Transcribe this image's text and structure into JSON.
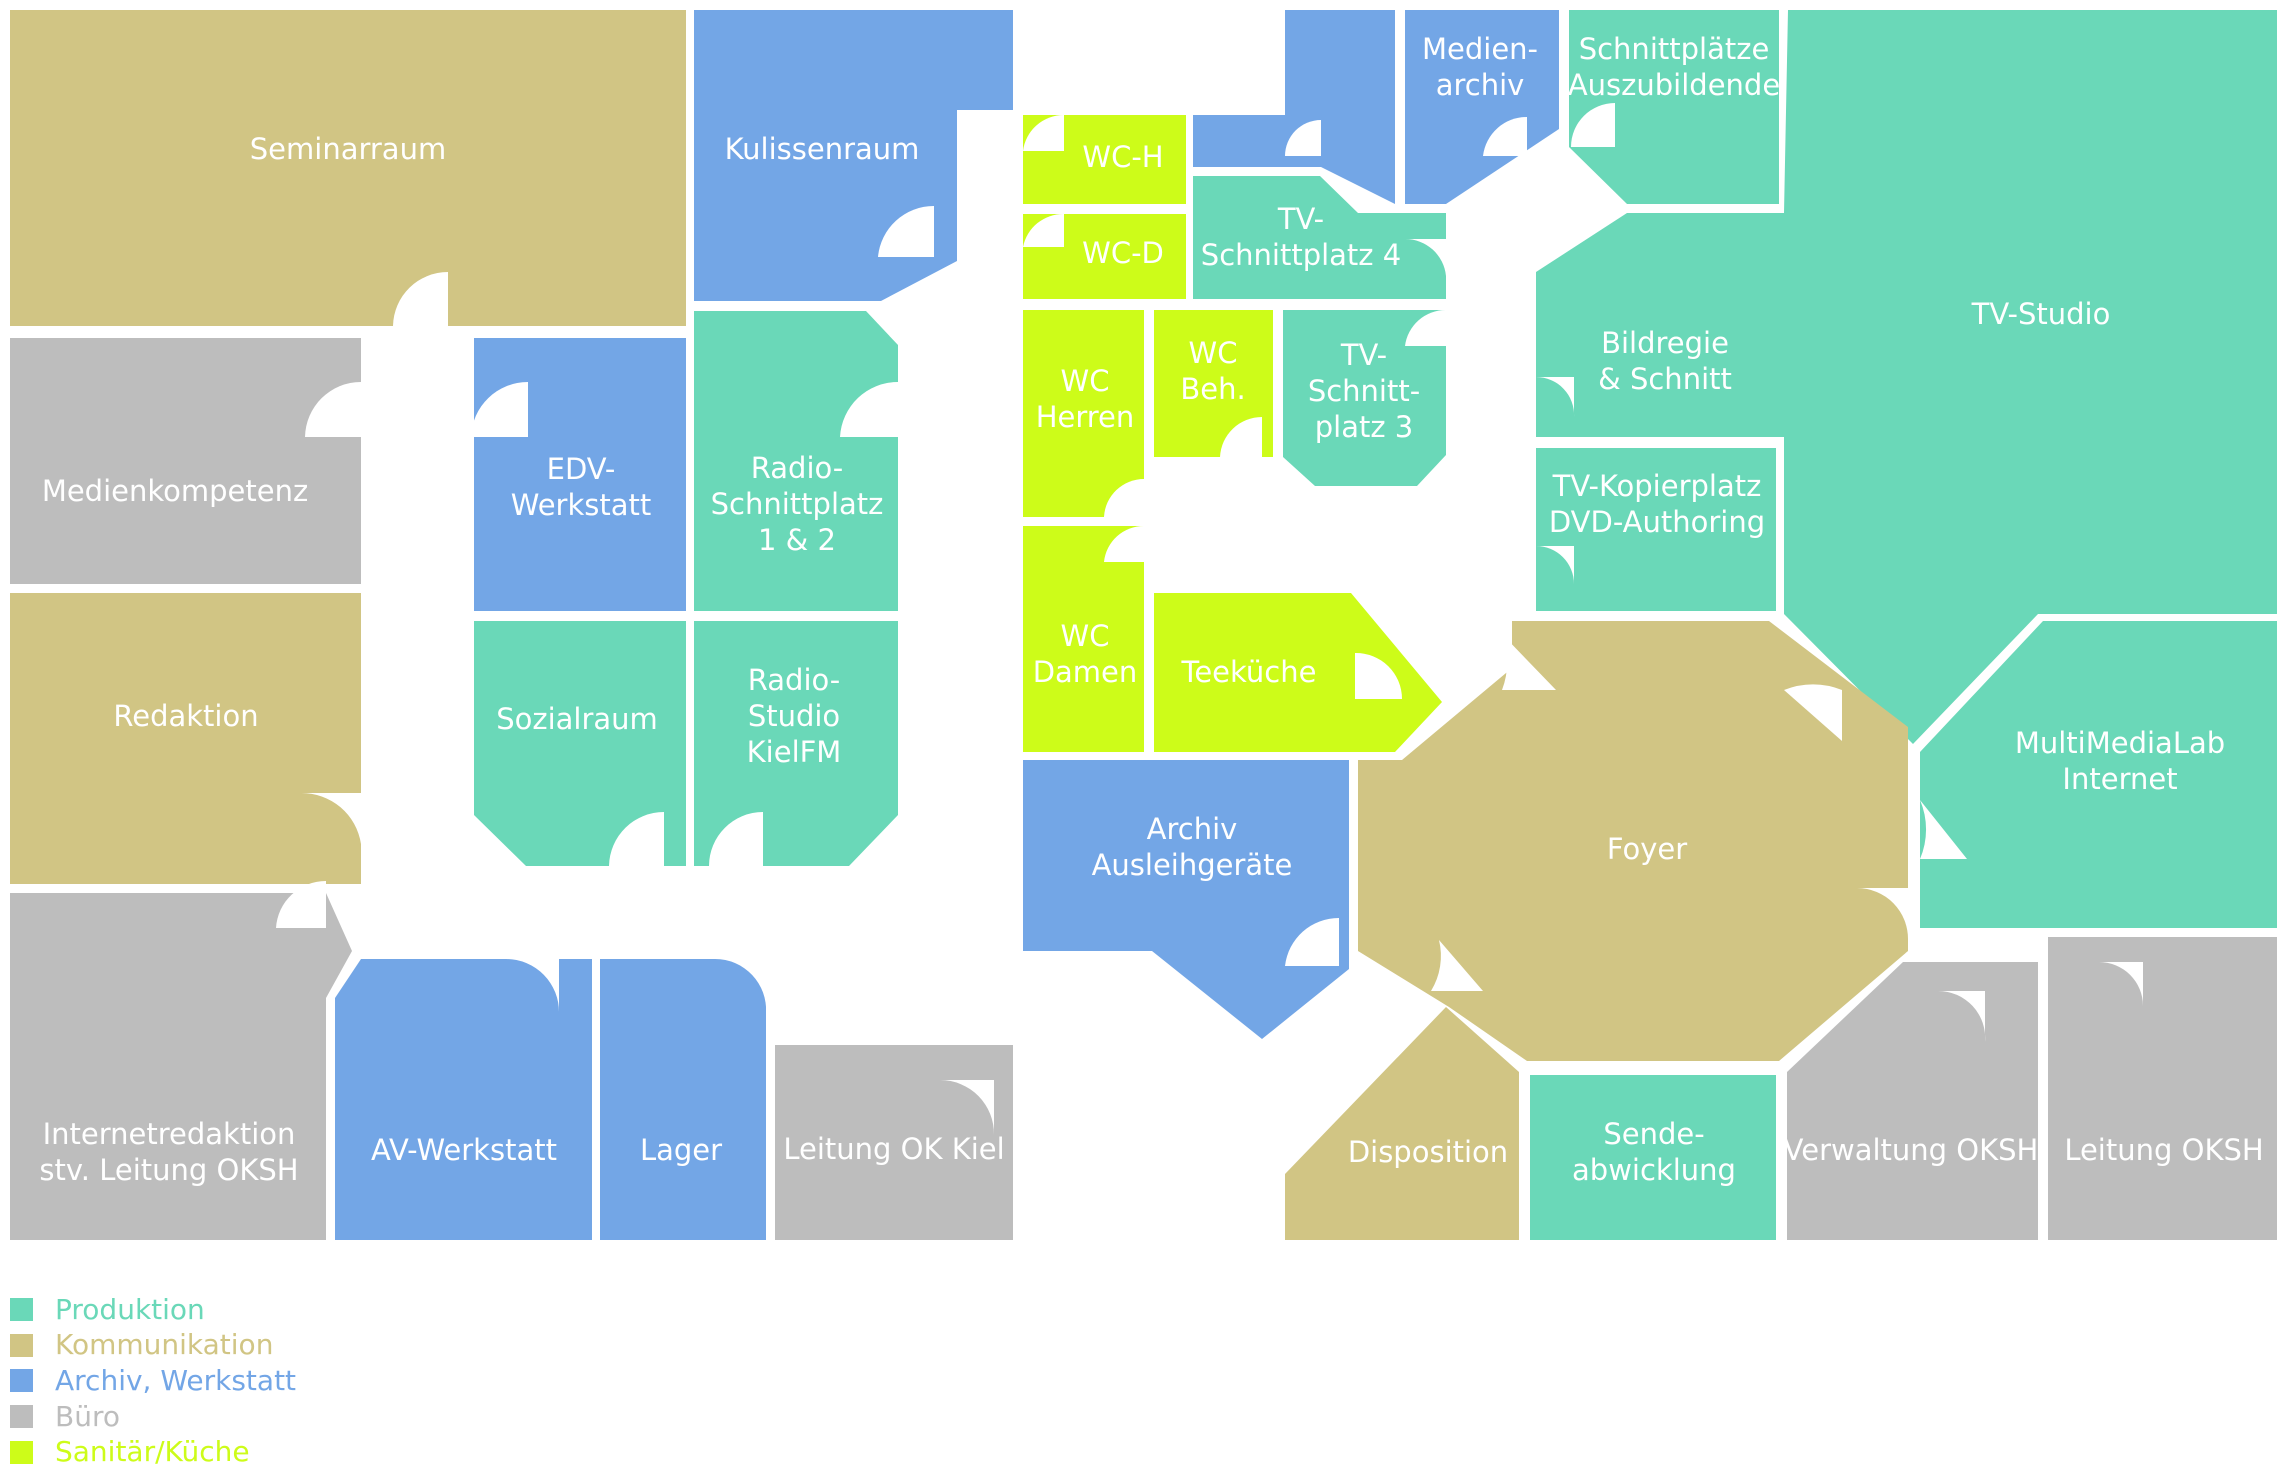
{
  "colors": {
    "produktion": "#6ad8b8",
    "kommunikation": "#d1c584",
    "archiv": "#73a6e6",
    "buero": "#bdbdbd",
    "sanitaer": "#cdfc19"
  },
  "rooms": [
    {
      "id": "seminarraum",
      "cat": "kommunikation",
      "lines": [
        "Seminarraum"
      ]
    },
    {
      "id": "kulissenraum",
      "cat": "archiv",
      "lines": [
        "Kulissenraum"
      ]
    },
    {
      "id": "medienkompetenz",
      "cat": "buero",
      "lines": [
        "Medienkompetenz"
      ]
    },
    {
      "id": "edv-werkstatt",
      "cat": "archiv",
      "lines": [
        "EDV-",
        "Werkstatt"
      ]
    },
    {
      "id": "radio-schnittplatz",
      "cat": "produktion",
      "lines": [
        "Radio-",
        "Schnittplatz",
        "1 & 2"
      ]
    },
    {
      "id": "redaktion",
      "cat": "kommunikation",
      "lines": [
        "Redaktion"
      ]
    },
    {
      "id": "sozialraum",
      "cat": "produktion",
      "lines": [
        "Sozialraum"
      ]
    },
    {
      "id": "radio-studio",
      "cat": "produktion",
      "lines": [
        "Radio-",
        "Studio",
        "KielFM"
      ]
    },
    {
      "id": "internetredaktion",
      "cat": "buero",
      "lines": [
        "Internetredaktion",
        "stv. Leitung OKSH"
      ]
    },
    {
      "id": "av-werkstatt",
      "cat": "archiv",
      "lines": [
        "AV-Werkstatt"
      ]
    },
    {
      "id": "lager",
      "cat": "archiv",
      "lines": [
        "Lager"
      ]
    },
    {
      "id": "leitung-ok-kiel",
      "cat": "buero",
      "lines": [
        "Leitung OK Kiel"
      ]
    },
    {
      "id": "wc-h",
      "cat": "sanitaer",
      "lines": [
        "WC-H"
      ]
    },
    {
      "id": "wc-d",
      "cat": "sanitaer",
      "lines": [
        "WC-D"
      ]
    },
    {
      "id": "wc-herren",
      "cat": "sanitaer",
      "lines": [
        "WC",
        "Herren"
      ]
    },
    {
      "id": "wc-beh",
      "cat": "sanitaer",
      "lines": [
        "WC",
        "Beh."
      ]
    },
    {
      "id": "wc-damen",
      "cat": "sanitaer",
      "lines": [
        "WC",
        "Damen"
      ]
    },
    {
      "id": "teekueche",
      "cat": "sanitaer",
      "lines": [
        "Teeküche"
      ]
    },
    {
      "id": "archiv-ausleihgeraete",
      "cat": "archiv",
      "lines": [
        "Archiv",
        "Ausleihgeräte"
      ]
    },
    {
      "id": "lager-oben",
      "cat": "archiv",
      "lines": []
    },
    {
      "id": "medienarchiv",
      "cat": "archiv",
      "lines": [
        "Medien-",
        "archiv"
      ]
    },
    {
      "id": "schnittplaetze-azubi",
      "cat": "produktion",
      "lines": [
        "Schnittplätze",
        "Auszubildende"
      ]
    },
    {
      "id": "tv-schnittplatz-4",
      "cat": "produktion",
      "lines": [
        "TV-",
        "Schnittplatz 4"
      ]
    },
    {
      "id": "tv-schnittplatz-3",
      "cat": "produktion",
      "lines": [
        "TV-",
        "Schnitt-",
        "platz 3"
      ]
    },
    {
      "id": "bildregie",
      "cat": "produktion",
      "lines": [
        "Bildregie",
        "& Schnitt"
      ]
    },
    {
      "id": "tv-studio",
      "cat": "produktion",
      "lines": [
        "TV-Studio"
      ]
    },
    {
      "id": "tv-kopierplatz",
      "cat": "produktion",
      "lines": [
        "TV-Kopierplatz",
        "DVD-Authoring"
      ]
    },
    {
      "id": "foyer",
      "cat": "kommunikation",
      "lines": [
        "Foyer"
      ]
    },
    {
      "id": "multimedialab",
      "cat": "produktion",
      "lines": [
        "MultiMediaLab",
        "Internet"
      ]
    },
    {
      "id": "disposition",
      "cat": "kommunikation",
      "lines": [
        "Disposition"
      ]
    },
    {
      "id": "sendeabwicklung",
      "cat": "produktion",
      "lines": [
        "Sende-",
        "abwicklung"
      ]
    },
    {
      "id": "verwaltung-oksh",
      "cat": "buero",
      "lines": [
        "Verwaltung OKSH"
      ]
    },
    {
      "id": "leitung-oksh",
      "cat": "buero",
      "lines": [
        "Leitung OKSH"
      ]
    }
  ],
  "legend": [
    {
      "label": "Produktion",
      "cat": "produktion"
    },
    {
      "label": "Kommunikation",
      "cat": "kommunikation"
    },
    {
      "label": "Archiv, Werkstatt",
      "cat": "archiv"
    },
    {
      "label": "Büro",
      "cat": "buero"
    },
    {
      "label": "Sanitär/Küche",
      "cat": "sanitaer"
    }
  ]
}
